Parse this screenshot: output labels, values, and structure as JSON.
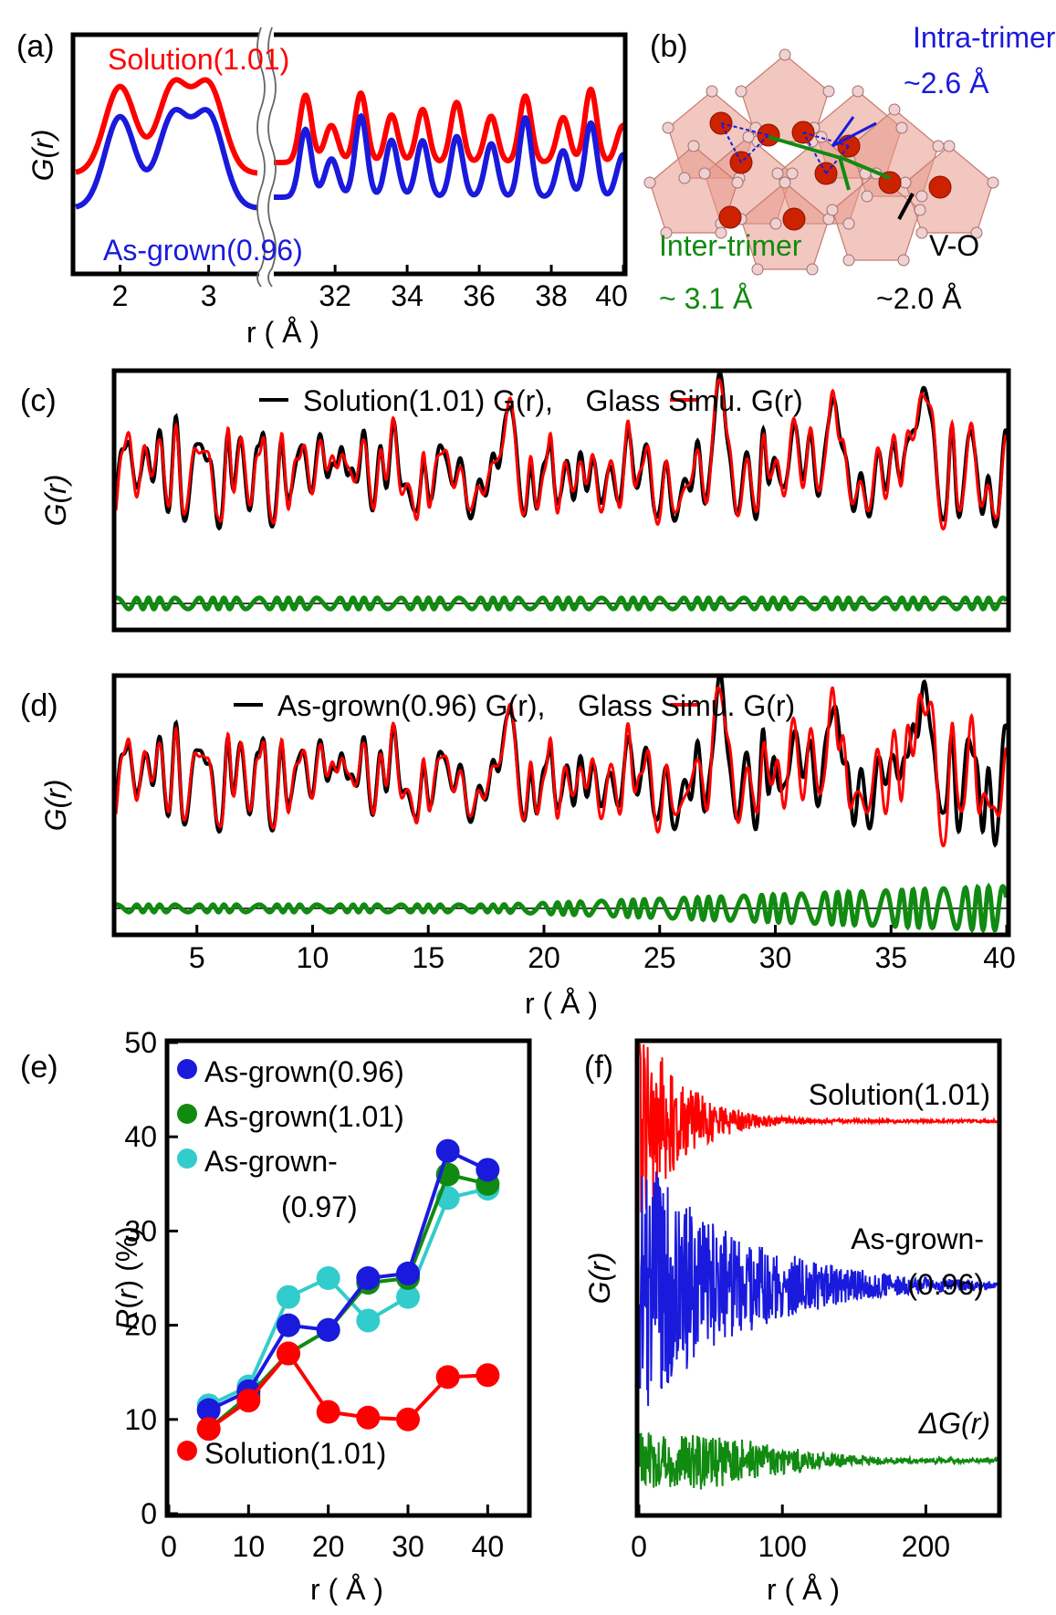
{
  "panels": {
    "a": {
      "label": "(a)",
      "ylabel": "G(r)",
      "xlabel": "r ( Å )",
      "legend_top": "Solution(1.01)",
      "legend_bottom": "As-grown(0.96)"
    },
    "b": {
      "label": "(b)",
      "intra_label": "Intra-trimer",
      "intra_value": "~2.6 Å",
      "inter_label": "Inter-trimer",
      "inter_value": "~ 3.1 Å",
      "vo_label": "V-O",
      "vo_value": "~2.0 Å"
    },
    "c": {
      "label": "(c)",
      "ylabel": "G(r)",
      "legend": "Solution(1.01) G(r),    Glass Simu. G(r)"
    },
    "d": {
      "label": "(d)",
      "ylabel": "G(r)",
      "xlabel": "r ( Å )",
      "legend": "As-grown(0.96) G(r),    Glass Simu. G(r)"
    },
    "e": {
      "label": "(e)",
      "ylabel": "R(r) (%)",
      "xlabel": "r ( Å )"
    },
    "f": {
      "label": "(f)",
      "ylabel": "G(r)",
      "xlabel": "r ( Å )",
      "label_top": "Solution(1.01)",
      "label_mid_1": "As-grown-",
      "label_mid_2": "(0.96)",
      "label_bottom": "ΔG(r)"
    }
  },
  "colors": {
    "red": "#ff0000",
    "blue": "#1a1adc",
    "green": "#118a11",
    "cyan": "#33cccc",
    "black": "#000000",
    "octa": "#e8998a"
  },
  "chart_data": [
    {
      "panel": "a",
      "type": "line",
      "xlabel": "r ( Å )",
      "ylabel": "G(r)",
      "xticks_left": [
        "2",
        "3"
      ],
      "xticks_right": [
        "32",
        "34",
        "36",
        "38",
        "40"
      ],
      "xlim_left": [
        1.5,
        3.55
      ],
      "xlim_right": [
        30.3,
        40
      ],
      "series": [
        {
          "name": "Solution(1.01)",
          "color": "#ff0000",
          "left_peaks": [
            2.0,
            2.6,
            3.0
          ],
          "right_peaks": [
            31.2,
            31.9,
            32.7,
            33.6,
            34.4,
            35.4,
            36.3,
            37.3,
            38.3,
            39.1,
            40.0
          ]
        },
        {
          "name": "As-grown(0.96)",
          "color": "#1a1adc",
          "left_peaks": [
            2.0,
            2.6,
            3.0
          ],
          "right_peaks": [
            31.2,
            31.9,
            32.7,
            33.6,
            34.4,
            35.4,
            36.3,
            37.3,
            38.3,
            39.1,
            40.0
          ]
        }
      ]
    },
    {
      "panel": "c",
      "type": "line",
      "xlim": [
        1.5,
        40
      ],
      "series": [
        {
          "name": "Solution(1.01) G(r)",
          "color": "#000000"
        },
        {
          "name": "Glass Simu. G(r)",
          "color": "#ff0000"
        },
        {
          "name": "difference",
          "color": "#118a11",
          "amplitude": "small"
        }
      ]
    },
    {
      "panel": "d",
      "type": "line",
      "xlim": [
        1.5,
        40
      ],
      "xticks": [
        5,
        10,
        15,
        20,
        25,
        30,
        35,
        40
      ],
      "xlabel": "r ( Å )",
      "series": [
        {
          "name": "As-grown(0.96) G(r)",
          "color": "#000000"
        },
        {
          "name": "Glass Simu. G(r)",
          "color": "#ff0000"
        },
        {
          "name": "difference",
          "color": "#118a11",
          "amplitude": "growing with r"
        }
      ]
    },
    {
      "panel": "e",
      "type": "scatter",
      "xlabel": "r ( Å )",
      "ylabel": "R(r) (%)",
      "xlim": [
        0,
        45
      ],
      "ylim": [
        0,
        50
      ],
      "xticks": [
        0,
        10,
        20,
        30,
        40
      ],
      "yticks": [
        0,
        10,
        20,
        30,
        40,
        50
      ],
      "x": [
        5,
        10,
        15,
        20,
        25,
        30,
        35,
        40
      ],
      "series": [
        {
          "name": "As-grown(0.96)",
          "color": "#1a1adc",
          "values": [
            11,
            13,
            20,
            19.5,
            25,
            25.5,
            38.5,
            36.5
          ]
        },
        {
          "name": "As-grown(1.01)",
          "color": "#118a11",
          "values": [
            9,
            12.5,
            17,
            19.5,
            24.5,
            25,
            36,
            35
          ]
        },
        {
          "name": "As-grown-\n(0.97)",
          "color": "#33cccc",
          "values": [
            11.5,
            13.5,
            23,
            25,
            20.5,
            23,
            33.5,
            34.5
          ]
        },
        {
          "name": "Solution(1.01)",
          "color": "#ff0000",
          "values": [
            9,
            12,
            17,
            10.8,
            10.2,
            10,
            14.5,
            14.7
          ]
        }
      ]
    },
    {
      "panel": "f",
      "type": "line",
      "xlabel": "r ( Å )",
      "ylabel": "G(r)",
      "xlim": [
        0,
        250
      ],
      "xticks": [
        0,
        100,
        200
      ],
      "series": [
        {
          "name": "Solution(1.01)",
          "color": "#ff0000",
          "envelope_decay": 30
        },
        {
          "name": "As-grown-(0.96)",
          "color": "#1a1adc",
          "envelope_decay": 70
        },
        {
          "name": "ΔG(r)",
          "color": "#118a11",
          "envelope_decay": 90
        }
      ]
    }
  ]
}
